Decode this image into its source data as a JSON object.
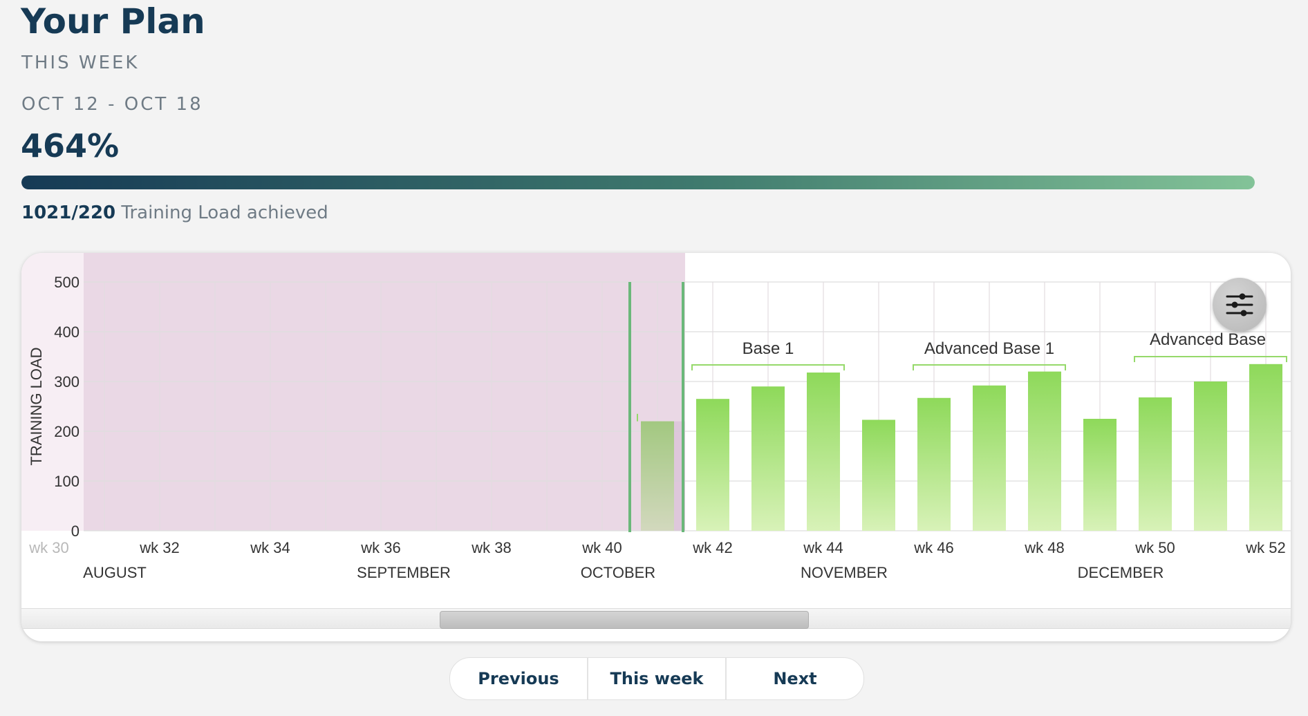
{
  "header": {
    "title": "Your Plan",
    "period_label": "THIS WEEK",
    "date_range": "OCT 12 - OCT 18",
    "percent": "464%",
    "progress_fraction": 1.0,
    "load_value": "1021/220",
    "load_text": "Training Load achieved"
  },
  "chart_data": {
    "type": "bar",
    "ylabel": "TRAINING LOAD",
    "ylim": [
      0,
      500
    ],
    "yticks": [
      0,
      100,
      200,
      300,
      400,
      500
    ],
    "grid": true,
    "week_tick_labels": [
      "wk 30",
      "wk 32",
      "wk 34",
      "wk 36",
      "wk 38",
      "wk 40",
      "wk 42",
      "wk 44",
      "wk 46",
      "wk 48",
      "wk 50",
      "wk 52"
    ],
    "month_labels": [
      "AUGUST",
      "SEPTEMBER",
      "OCTOBER",
      "NOVEMBER",
      "DECEMBER"
    ],
    "categories": [
      "wk 41",
      "wk 42",
      "wk 43",
      "wk 44",
      "wk 45",
      "wk 46",
      "wk 47",
      "wk 48",
      "wk 49",
      "wk 50",
      "wk 51",
      "wk 52"
    ],
    "values": [
      220,
      265,
      290,
      318,
      223,
      267,
      292,
      320,
      225,
      268,
      300,
      335
    ],
    "phases": [
      {
        "name": "Base 1",
        "from_week": 42,
        "to_week": 45
      },
      {
        "name": "Advanced Base 1",
        "from_week": 46,
        "to_week": 49
      },
      {
        "name": "Advanced Base",
        "from_week": 50,
        "to_week": 53
      }
    ],
    "past_region_end_week": 41,
    "current_week": 41,
    "colors": {
      "past_region": "#ead8e5",
      "bar": "#8ed95a",
      "bar_light": "#d8f2b8",
      "current_marker": "#6bb87a",
      "phase_bracket": "#95d96a"
    }
  },
  "nav": {
    "previous": "Previous",
    "this_week": "This week",
    "next": "Next"
  },
  "icons": {
    "filter": "sliders-icon"
  }
}
